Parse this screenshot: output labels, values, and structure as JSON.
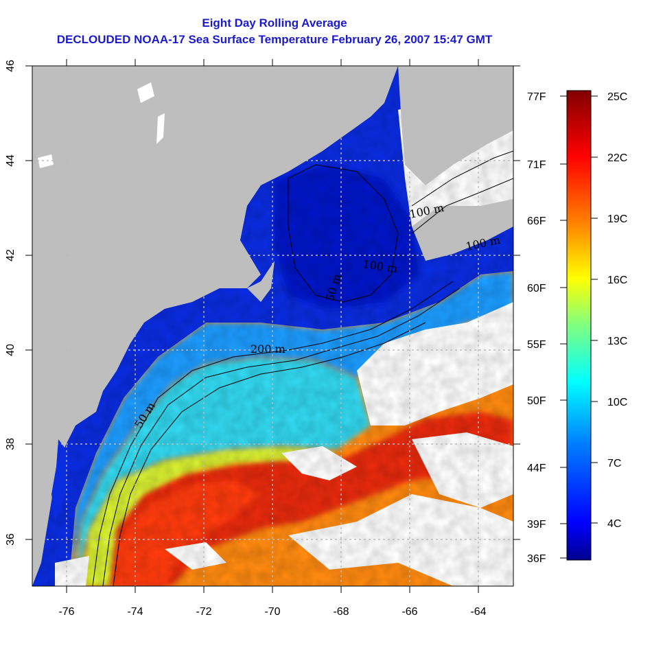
{
  "title": {
    "line1": "Eight Day Rolling Average",
    "line2": "DECLOUDED NOAA-17 Sea Surface Temperature February 26, 2007 15:47 GMT"
  },
  "map": {
    "lon_range": [
      -77,
      -63
    ],
    "lat_range": [
      35,
      46
    ],
    "lon_ticks": [
      "-76",
      "-74",
      "-72",
      "-70",
      "-68",
      "-66",
      "-64"
    ],
    "lat_ticks": [
      "36",
      "38",
      "40",
      "42",
      "44",
      "46"
    ],
    "grid": true,
    "contour_labels": [
      "50 m",
      "200 m",
      "50 m",
      "100 m",
      "100 m",
      "100 m"
    ],
    "colors": {
      "land": "#bebebe",
      "cloud": "#ffffff",
      "grid": "#bbbbbb"
    }
  },
  "colorbar": {
    "celsius_labels": [
      "25C",
      "22C",
      "19C",
      "16C",
      "13C",
      "10C",
      "7C",
      "4C"
    ],
    "fahrenheit_labels": [
      "77F",
      "71F",
      "66F",
      "60F",
      "55F",
      "50F",
      "44F",
      "39F",
      "36F"
    ],
    "range_c": [
      2.2,
      25
    ],
    "colors": [
      "#00008f",
      "#0000ff",
      "#0080ff",
      "#00ffff",
      "#80ff80",
      "#ffff00",
      "#ff8000",
      "#ff0000",
      "#800000"
    ]
  }
}
